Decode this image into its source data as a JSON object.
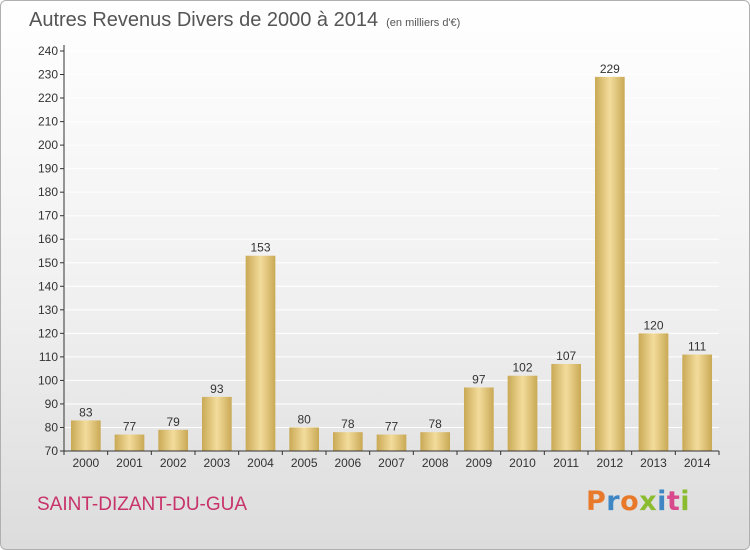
{
  "header": {
    "title": "Autres Revenus Divers de 2000 à 2014",
    "unit": "(en milliers d'€)"
  },
  "footer": {
    "commune": "SAINT-DIZANT-DU-GUA",
    "logo_text": "Proxiti",
    "logo_colors": [
      "#e8792b",
      "#3f86c4",
      "#e8792b",
      "#8bbb2f",
      "#3f86c4",
      "#d94a8c",
      "#8bbb2f"
    ]
  },
  "colors": {
    "bar_light": "#f3dc9c",
    "bar_dark": "#c9a955",
    "axis": "#333333",
    "grid": "#ffffff"
  },
  "chart_data": {
    "type": "bar",
    "title": "Autres Revenus Divers de 2000 à 2014",
    "subtitle": "(en milliers d'€)",
    "categories": [
      "2000",
      "2001",
      "2002",
      "2003",
      "2004",
      "2005",
      "2006",
      "2007",
      "2008",
      "2009",
      "2010",
      "2011",
      "2012",
      "2013",
      "2014"
    ],
    "values": [
      83,
      77,
      79,
      93,
      153,
      80,
      78,
      77,
      78,
      97,
      102,
      107,
      229,
      120,
      111
    ],
    "ylim": [
      70,
      240
    ],
    "yticks": [
      70,
      80,
      90,
      100,
      110,
      120,
      130,
      140,
      150,
      160,
      170,
      180,
      190,
      200,
      210,
      220,
      230,
      240
    ],
    "grid": true,
    "xlabel": "",
    "ylabel": ""
  }
}
